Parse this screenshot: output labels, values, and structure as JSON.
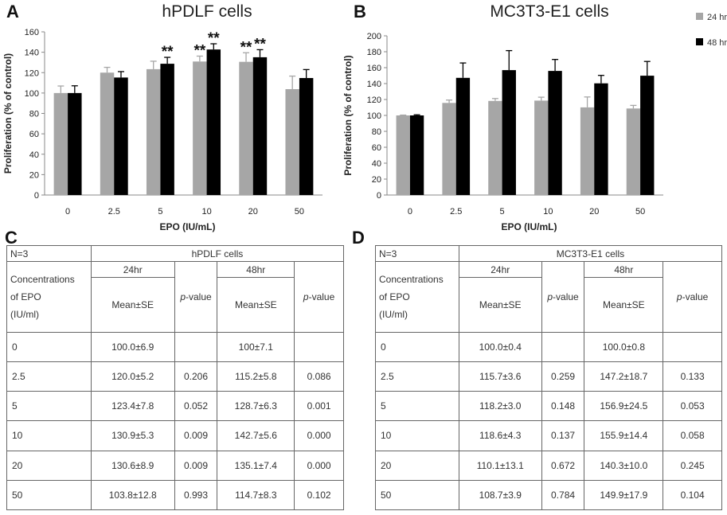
{
  "panels": {
    "a": "A",
    "b": "B",
    "c": "C",
    "d": "D"
  },
  "chart_data": [
    {
      "type": "bar",
      "title": "hPDLF cells",
      "xlabel": "EPO (IU/mL)",
      "ylabel": "Proliferation (% of control)",
      "categories": [
        "0",
        "2.5",
        "5",
        "10",
        "20",
        "50"
      ],
      "ylim": [
        0,
        160
      ],
      "yticks": [
        "0",
        "20",
        "40",
        "60",
        "80",
        "100",
        "120",
        "140",
        "160"
      ],
      "series": [
        {
          "name": "24 hr",
          "color": "#a6a6a6",
          "values": [
            100.0,
            120.0,
            123.4,
            130.9,
            130.6,
            103.8
          ],
          "errors": [
            6.9,
            5.2,
            7.8,
            5.3,
            8.9,
            12.8
          ]
        },
        {
          "name": "48 hr",
          "color": "#000000",
          "values": [
            100,
            115.2,
            128.7,
            142.7,
            135.1,
            114.7
          ],
          "errors": [
            7.1,
            5.8,
            6.3,
            5.6,
            7.4,
            8.3
          ]
        }
      ],
      "annotations": [
        {
          "category": "5",
          "series": "48 hr",
          "text": "**"
        },
        {
          "category": "10",
          "series": "24 hr",
          "text": "**"
        },
        {
          "category": "10",
          "series": "48 hr",
          "text": "**"
        },
        {
          "category": "20",
          "series": "24 hr",
          "text": "**"
        },
        {
          "category": "20",
          "series": "48 hr",
          "text": "**"
        }
      ]
    },
    {
      "type": "bar",
      "title": "MC3T3-E1 cells",
      "xlabel": "EPO (IU/mL)",
      "ylabel": "Proliferation (% of control)",
      "categories": [
        "0",
        "2.5",
        "5",
        "10",
        "20",
        "50"
      ],
      "ylim": [
        0,
        200
      ],
      "yticks": [
        "0",
        "20",
        "40",
        "60",
        "80",
        "100",
        "120",
        "140",
        "160",
        "180",
        "200"
      ],
      "legend_position": "top-right",
      "series": [
        {
          "name": "24 hr",
          "color": "#a6a6a6",
          "values": [
            100.0,
            115.7,
            118.2,
            118.6,
            110.1,
            108.7
          ],
          "errors": [
            0.4,
            3.6,
            3.0,
            4.3,
            13.1,
            3.9
          ]
        },
        {
          "name": "48 hr",
          "color": "#000000",
          "values": [
            100.0,
            147.2,
            156.9,
            155.9,
            140.3,
            149.9
          ],
          "errors": [
            0.8,
            18.7,
            24.5,
            14.4,
            10.0,
            17.9
          ]
        }
      ]
    }
  ],
  "tables": {
    "c": {
      "n": "N=3",
      "cells": "hPDLF cells",
      "h24": "24hr",
      "h48": "48hr",
      "conc": [
        "Concentrations",
        "of EPO",
        "(IU/ml)"
      ],
      "mean": "Mean±SE",
      "p_ital": "p",
      "p_rest": "-value",
      "rows": [
        [
          "0",
          "100.0±6.9",
          "",
          "100±7.1",
          ""
        ],
        [
          "2.5",
          "120.0±5.2",
          "0.206",
          "115.2±5.8",
          "0.086"
        ],
        [
          "5",
          "123.4±7.8",
          "0.052",
          "128.7±6.3",
          "0.001"
        ],
        [
          "10",
          "130.9±5.3",
          "0.009",
          "142.7±5.6",
          "0.000"
        ],
        [
          "20",
          "130.6±8.9",
          "0.009",
          "135.1±7.4",
          "0.000"
        ],
        [
          "50",
          "103.8±12.8",
          "0.993",
          "114.7±8.3",
          "0.102"
        ]
      ]
    },
    "d": {
      "n": "N=3",
      "cells": "MC3T3-E1 cells",
      "h24": "24hr",
      "h48": "48hr",
      "conc": [
        "Concentrations",
        "of EPO",
        "(IU/ml)"
      ],
      "mean": "Mean±SE",
      "p_ital": "p",
      "p_rest": "-value",
      "rows": [
        [
          "0",
          "100.0±0.4",
          "",
          "100.0±0.8",
          ""
        ],
        [
          "2.5",
          "115.7±3.6",
          "0.259",
          "147.2±18.7",
          "0.133"
        ],
        [
          "5",
          "118.2±3.0",
          "0.148",
          "156.9±24.5",
          "0.053"
        ],
        [
          "10",
          "118.6±4.3",
          "0.137",
          "155.9±14.4",
          "0.058"
        ],
        [
          "20",
          "110.1±13.1",
          "0.672",
          "140.3±10.0",
          "0.245"
        ],
        [
          "50",
          "108.7±3.9",
          "0.784",
          "149.9±17.9",
          "0.104"
        ]
      ]
    }
  }
}
